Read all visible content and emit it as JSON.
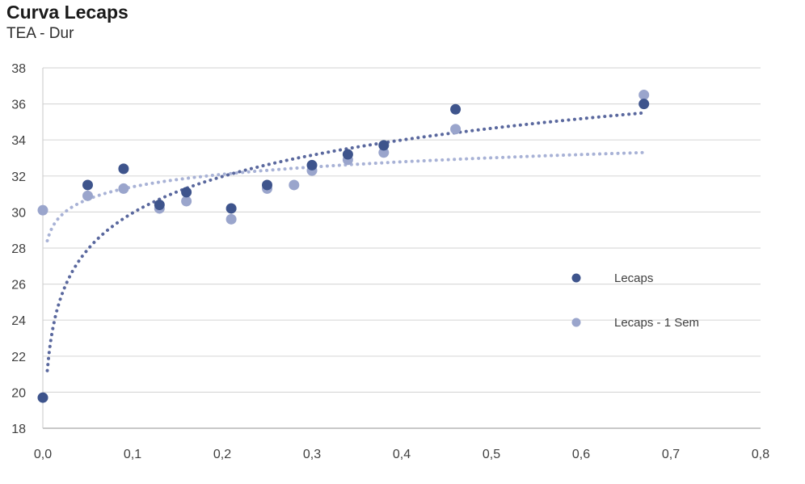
{
  "title": "Curva Lecaps",
  "subtitle": "TEA - Dur",
  "chart_data": {
    "type": "scatter",
    "title": "Curva Lecaps",
    "subtitle": "TEA - Dur",
    "xlabel": "",
    "ylabel": "",
    "xlim": [
      0,
      0.8
    ],
    "ylim": [
      18,
      38
    ],
    "grid": "horizontal",
    "decimal_separator": ",",
    "y_ticks": [
      18,
      20,
      22,
      24,
      26,
      28,
      30,
      32,
      34,
      36,
      38
    ],
    "x_ticks": [
      {
        "value": 0.0,
        "label": "0,0"
      },
      {
        "value": 0.1,
        "label": "0,1"
      },
      {
        "value": 0.2,
        "label": "0,2"
      },
      {
        "value": 0.3,
        "label": "0,3"
      },
      {
        "value": 0.4,
        "label": "0,4"
      },
      {
        "value": 0.5,
        "label": "0,5"
      },
      {
        "value": 0.6,
        "label": "0,6"
      },
      {
        "value": 0.7,
        "label": "0,7"
      },
      {
        "value": 0.8,
        "label": "0,8"
      }
    ],
    "legend": {
      "position": "middle-right",
      "items": [
        "Lecaps",
        "Lecaps - 1 Sem"
      ]
    },
    "series": [
      {
        "name": "Lecaps",
        "color": "#3E548C",
        "trend_color": "#5A689E",
        "points": [
          [
            0.0,
            19.7
          ],
          [
            0.05,
            31.5
          ],
          [
            0.09,
            32.4
          ],
          [
            0.13,
            30.4
          ],
          [
            0.16,
            31.1
          ],
          [
            0.21,
            30.2
          ],
          [
            0.25,
            31.5
          ],
          [
            0.3,
            32.6
          ],
          [
            0.34,
            33.2
          ],
          [
            0.38,
            33.7
          ],
          [
            0.46,
            35.7
          ],
          [
            0.67,
            36.0
          ]
        ],
        "trend": {
          "type": "logarithmic",
          "a": 2.92,
          "b": 36.67,
          "x_start": 0.005,
          "x_end": 0.67
        }
      },
      {
        "name": "Lecaps - 1 Sem",
        "color": "#9AA5CC",
        "trend_color": "#A8B2D6",
        "points": [
          [
            0.0,
            30.1
          ],
          [
            0.05,
            30.9
          ],
          [
            0.09,
            31.3
          ],
          [
            0.13,
            30.2
          ],
          [
            0.16,
            30.6
          ],
          [
            0.21,
            29.6
          ],
          [
            0.25,
            31.3
          ],
          [
            0.28,
            31.5
          ],
          [
            0.3,
            32.3
          ],
          [
            0.34,
            32.9
          ],
          [
            0.38,
            33.3
          ],
          [
            0.46,
            34.6
          ],
          [
            0.67,
            36.5
          ]
        ],
        "trend": {
          "type": "logarithmic",
          "a": 1.0,
          "b": 33.7,
          "x_start": 0.005,
          "x_end": 0.67
        }
      }
    ]
  }
}
